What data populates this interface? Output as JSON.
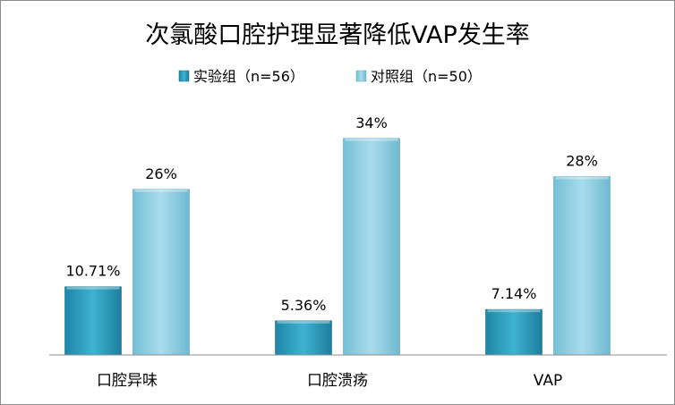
{
  "chart_data": {
    "type": "bar",
    "title": "次氯酸口腔护理显著降低VAP发生率",
    "categories": [
      "口腔异味",
      "口腔溃疡",
      "VAP"
    ],
    "series": [
      {
        "name": "实验组（n=56）",
        "values": [
          10.71,
          5.36,
          7.14
        ],
        "labels": [
          "10.71%",
          "5.36%",
          "7.14%"
        ],
        "color": "#2a9bbd"
      },
      {
        "name": "对照组（n=50）",
        "values": [
          26,
          34,
          28
        ],
        "labels": [
          "26%",
          "34%",
          "28%"
        ],
        "color": "#8fd0e4"
      }
    ],
    "ylim": [
      0,
      40
    ],
    "grid": false,
    "legend_position": "top"
  }
}
